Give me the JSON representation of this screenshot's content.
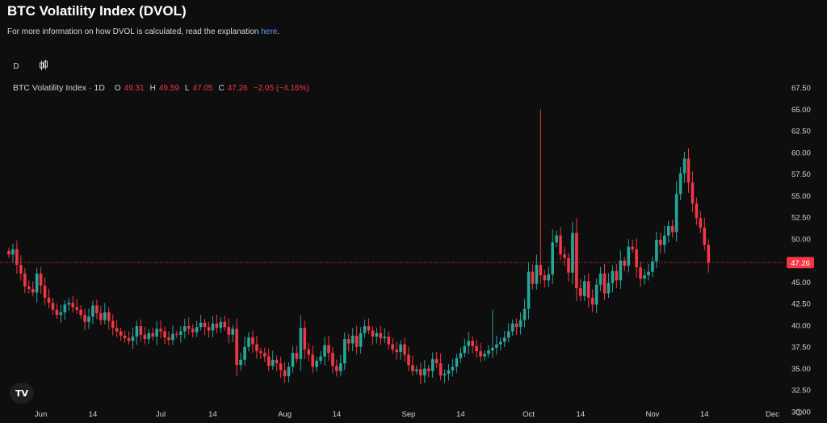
{
  "header": {
    "title": "BTC Volatility Index (DVOL)",
    "subtitle_prefix": "For more information on how DVOL is calculated, read the explanation ",
    "subtitle_link": "here",
    "subtitle_suffix": "."
  },
  "toolbar": {
    "interval": "D",
    "candles_icon": "candlestick-icon"
  },
  "legend": {
    "symbol": "BTC Volatility Index · 1D",
    "open_label": "O",
    "open": "49.31",
    "high_label": "H",
    "high": "49.59",
    "low_label": "L",
    "low": "47.05",
    "close_label": "C",
    "close": "47.26",
    "change": "−2.05 (−4.16%)"
  },
  "colors": {
    "up": "#26a69a",
    "down": "#f23645",
    "background": "#0e0e0e",
    "text": "#d1d4dc"
  },
  "chart_data": {
    "type": "candlestick",
    "ylim": [
      30,
      68.5
    ],
    "y_ticks": [
      "30.00",
      "32.50",
      "35.00",
      "37.50",
      "40.00",
      "42.50",
      "45.00",
      "47.50",
      "50.00",
      "52.50",
      "55.00",
      "57.50",
      "60.00",
      "62.50",
      "65.00",
      "67.50"
    ],
    "x_ticks": [
      {
        "label": "Jun",
        "date": "2024-06-01"
      },
      {
        "label": "14",
        "date": "2024-06-14"
      },
      {
        "label": "Jul",
        "date": "2024-07-01"
      },
      {
        "label": "14",
        "date": "2024-07-14"
      },
      {
        "label": "Aug",
        "date": "2024-08-01"
      },
      {
        "label": "14",
        "date": "2024-08-14"
      },
      {
        "label": "Sep",
        "date": "2024-09-01"
      },
      {
        "label": "14",
        "date": "2024-09-14"
      },
      {
        "label": "Oct",
        "date": "2024-10-01"
      },
      {
        "label": "14",
        "date": "2024-10-14"
      },
      {
        "label": "Nov",
        "date": "2024-11-01"
      },
      {
        "label": "14",
        "date": "2024-11-14"
      },
      {
        "label": "Dec",
        "date": "2024-12-01"
      }
    ],
    "last_price": 47.26,
    "last_price_label": "47.26",
    "start_date": "2024-05-24",
    "closes": [
      48.2,
      48.8,
      47.0,
      46.0,
      44.5,
      44.2,
      43.8,
      46.0,
      44.6,
      43.2,
      42.6,
      41.8,
      41.2,
      41.5,
      42.4,
      42.6,
      42.1,
      41.8,
      41.2,
      40.4,
      41.0,
      42.3,
      41.4,
      40.6,
      41.5,
      40.5,
      39.7,
      39.3,
      38.8,
      38.5,
      38.2,
      38.7,
      39.9,
      38.9,
      38.4,
      39.1,
      38.7,
      39.6,
      39.3,
      38.6,
      38.3,
      39.0,
      38.9,
      39.3,
      39.9,
      39.6,
      39.2,
      39.8,
      40.3,
      39.8,
      39.4,
      40.2,
      39.7,
      40.4,
      39.8,
      38.9,
      39.6,
      35.4,
      36.0,
      37.5,
      38.6,
      37.8,
      37.0,
      36.8,
      36.4,
      35.3,
      36.0,
      35.6,
      34.8,
      34.1,
      35.2,
      36.8,
      36.1,
      39.7,
      37.2,
      36.6,
      35.2,
      35.9,
      36.4,
      37.7,
      36.8,
      35.3,
      34.7,
      35.6,
      38.4,
      37.9,
      38.8,
      37.5,
      39.1,
      39.9,
      39.4,
      38.7,
      39.1,
      38.5,
      38.7,
      37.8,
      37.2,
      36.9,
      37.8,
      36.6,
      35.4,
      34.7,
      34.9,
      34.2,
      35.0,
      34.7,
      36.1,
      35.6,
      34.2,
      34.4,
      34.8,
      35.2,
      36.2,
      36.8,
      37.6,
      38.2,
      37.6,
      37.0,
      36.4,
      36.7,
      37.1,
      37.4,
      37.8,
      38.1,
      38.6,
      39.3,
      40.2,
      39.8,
      40.6,
      41.9,
      46.2,
      44.8,
      47.0,
      45.8,
      45.2,
      45.9,
      49.6,
      50.4,
      48.2,
      47.8,
      46.1,
      50.7,
      44.3,
      43.4,
      45.1,
      43.2,
      42.4,
      44.7,
      46.0,
      43.7,
      44.9,
      46.3,
      45.2,
      47.5,
      46.9,
      49.1,
      48.8,
      46.7,
      45.4,
      45.8,
      46.2,
      47.4,
      49.9,
      49.3,
      50.4,
      51.5,
      50.8,
      55.2,
      57.6,
      59.3,
      56.5,
      54.1,
      52.4,
      51.3,
      49.3,
      47.26
    ]
  }
}
